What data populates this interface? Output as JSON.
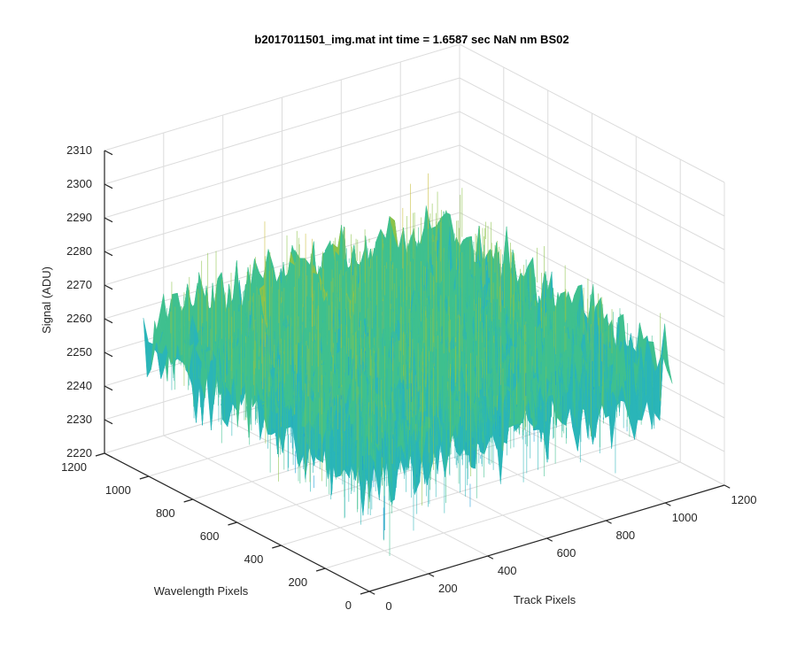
{
  "chart_data": {
    "type": "surface",
    "title": "b2017011501_img.mat int time = 1.6587 sec  NaN nm BS02",
    "xlabel": "Track Pixels",
    "ylabel": "Wavelength Pixels",
    "zlabel": "Signal (ADU)",
    "xlim": [
      0,
      1200
    ],
    "ylim": [
      0,
      1200
    ],
    "zlim": [
      2220,
      2310
    ],
    "x_ticks": [
      "0",
      "200",
      "400",
      "600",
      "800",
      "1000",
      "1200"
    ],
    "y_ticks": [
      "0",
      "200",
      "400",
      "600",
      "800",
      "1000",
      "1200"
    ],
    "z_ticks": [
      "2220",
      "2230",
      "2240",
      "2250",
      "2260",
      "2270",
      "2280",
      "2290",
      "2300",
      "2310"
    ],
    "x_extent": [
      0,
      1024
    ],
    "y_extent": [
      0,
      1024
    ],
    "signal_mean": 2258,
    "signal_range": [
      2225,
      2305
    ],
    "grid": true,
    "colormap": [
      "#0072bd",
      "#1a9bd7",
      "#2ab5b8",
      "#3fc08f",
      "#8cc34a",
      "#c9bd3a",
      "#edba2f"
    ]
  }
}
